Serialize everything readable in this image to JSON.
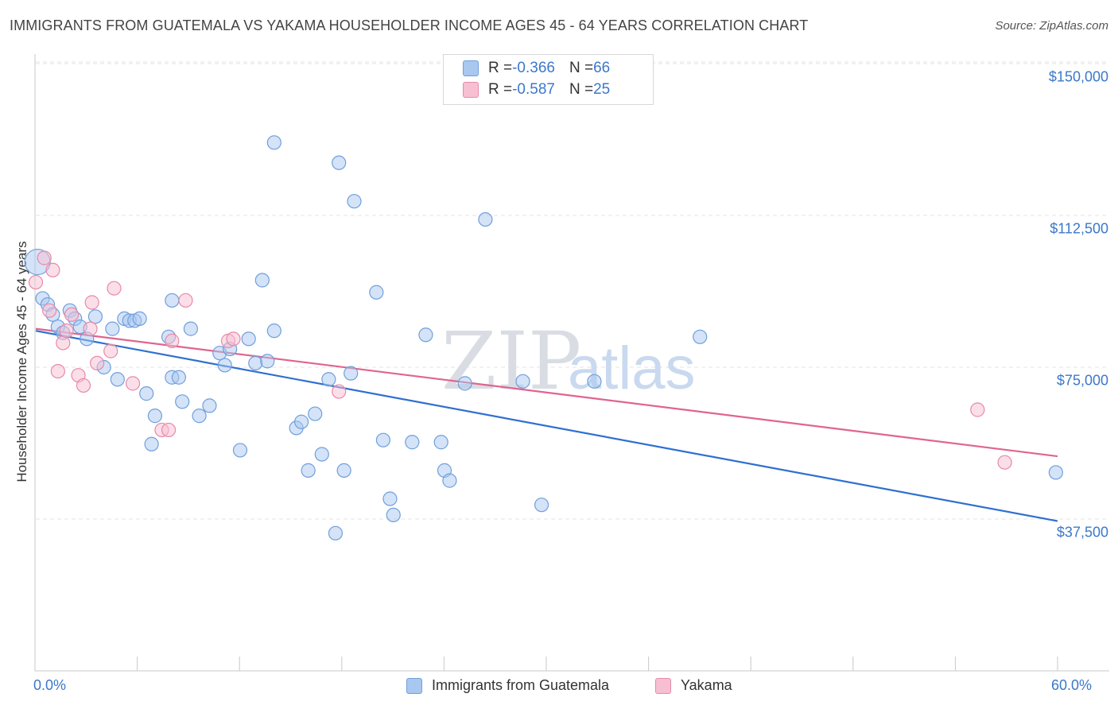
{
  "header": {
    "title": "IMMIGRANTS FROM GUATEMALA VS YAKAMA HOUSEHOLDER INCOME AGES 45 - 64 YEARS CORRELATION CHART",
    "source": "Source: ZipAtlas.com"
  },
  "watermark": {
    "zip": "ZIP",
    "atlas": "atlas"
  },
  "legend": {
    "rows": [
      {
        "r_label": "R = ",
        "r_value": "-0.366",
        "n_label": "N = ",
        "n_value": "66",
        "color": "#a9c8f0",
        "border": "#6f9fdc"
      },
      {
        "r_label": "R = ",
        "r_value": "-0.587",
        "n_label": "N = ",
        "n_value": "25",
        "color": "#f7bfd2",
        "border": "#e889a8"
      }
    ]
  },
  "bottom_legend": {
    "guatemala": "Immigrants from Guatemala",
    "yakama": "Yakama"
  },
  "axes": {
    "ylabel": "Householder Income Ages 45 - 64 years",
    "x_min_label": "0.0%",
    "x_max_label": "60.0%",
    "y_ticks": [
      "$150,000",
      "$112,500",
      "$75,000",
      "$37,500"
    ]
  },
  "chart_data": {
    "type": "scatter",
    "title": "IMMIGRANTS FROM GUATEMALA VS YAKAMA HOUSEHOLDER INCOME AGES 45 - 64 YEARS CORRELATION CHART",
    "xlabel": "",
    "ylabel": "Householder Income Ages 45 - 64 years",
    "xlim": [
      0,
      60
    ],
    "ylim": [
      0,
      157500
    ],
    "y_ticks": [
      37500,
      75000,
      112500,
      150000
    ],
    "grid": true,
    "legend_position": "top-center",
    "series": [
      {
        "name": "Immigrants from Guatemala",
        "color": "#6f9fdc",
        "fill": "#a9c8f0",
        "r": -0.366,
        "n": 66,
        "trend": {
          "x": [
            0,
            60
          ],
          "y": [
            84000,
            37000
          ]
        },
        "points": [
          [
            0.1,
            101000
          ],
          [
            0.4,
            92000
          ],
          [
            0.7,
            90500
          ],
          [
            1.0,
            88000
          ],
          [
            1.3,
            85000
          ],
          [
            1.6,
            83500
          ],
          [
            2.0,
            89000
          ],
          [
            2.3,
            87000
          ],
          [
            2.6,
            85000
          ],
          [
            3.0,
            82000
          ],
          [
            3.5,
            87500
          ],
          [
            4.0,
            75000
          ],
          [
            4.5,
            84500
          ],
          [
            4.8,
            72000
          ],
          [
            5.2,
            87000
          ],
          [
            5.5,
            86500
          ],
          [
            5.8,
            86500
          ],
          [
            6.1,
            87000
          ],
          [
            6.5,
            68500
          ],
          [
            6.8,
            56000
          ],
          [
            7.0,
            63000
          ],
          [
            7.8,
            82500
          ],
          [
            8.0,
            72500
          ],
          [
            8.4,
            72500
          ],
          [
            8.6,
            66500
          ],
          [
            8.0,
            91500
          ],
          [
            9.1,
            84500
          ],
          [
            9.6,
            63000
          ],
          [
            10.2,
            65500
          ],
          [
            10.8,
            78500
          ],
          [
            11.1,
            75500
          ],
          [
            11.4,
            79500
          ],
          [
            12.0,
            54500
          ],
          [
            12.5,
            82000
          ],
          [
            12.9,
            76000
          ],
          [
            13.3,
            96500
          ],
          [
            13.6,
            76500
          ],
          [
            14.0,
            84000
          ],
          [
            14.0,
            130500
          ],
          [
            15.3,
            60000
          ],
          [
            15.6,
            61500
          ],
          [
            16.0,
            49500
          ],
          [
            16.4,
            63500
          ],
          [
            16.8,
            53500
          ],
          [
            17.2,
            72000
          ],
          [
            17.6,
            34000
          ],
          [
            17.8,
            125500
          ],
          [
            18.1,
            49500
          ],
          [
            18.5,
            73500
          ],
          [
            18.7,
            116000
          ],
          [
            20.0,
            93500
          ],
          [
            20.4,
            57000
          ],
          [
            20.8,
            42500
          ],
          [
            21.0,
            38500
          ],
          [
            22.1,
            56500
          ],
          [
            22.9,
            83000
          ],
          [
            23.8,
            56500
          ],
          [
            24.0,
            49500
          ],
          [
            24.3,
            47000
          ],
          [
            25.2,
            71000
          ],
          [
            26.4,
            111500
          ],
          [
            28.6,
            71500
          ],
          [
            29.7,
            41000
          ],
          [
            32.8,
            71500
          ],
          [
            39.0,
            82500
          ],
          [
            59.9,
            49000
          ]
        ]
      },
      {
        "name": "Yakama",
        "color": "#e889a8",
        "fill": "#f7bfd2",
        "r": -0.587,
        "n": 25,
        "trend": {
          "x": [
            0,
            60
          ],
          "y": [
            84500,
            53000
          ]
        },
        "points": [
          [
            0.0,
            96000
          ],
          [
            0.5,
            102000
          ],
          [
            0.8,
            89000
          ],
          [
            1.0,
            99000
          ],
          [
            1.3,
            74000
          ],
          [
            1.6,
            81000
          ],
          [
            1.8,
            84000
          ],
          [
            2.1,
            88000
          ],
          [
            2.5,
            73000
          ],
          [
            2.8,
            70500
          ],
          [
            3.2,
            84500
          ],
          [
            3.3,
            91000
          ],
          [
            3.6,
            76000
          ],
          [
            4.4,
            79000
          ],
          [
            4.6,
            94500
          ],
          [
            5.7,
            71000
          ],
          [
            7.4,
            59500
          ],
          [
            7.8,
            59500
          ],
          [
            8.0,
            81500
          ],
          [
            8.8,
            91500
          ],
          [
            11.3,
            81500
          ],
          [
            11.6,
            82000
          ],
          [
            17.8,
            69000
          ],
          [
            55.3,
            64500
          ],
          [
            56.9,
            51500
          ]
        ]
      }
    ]
  }
}
